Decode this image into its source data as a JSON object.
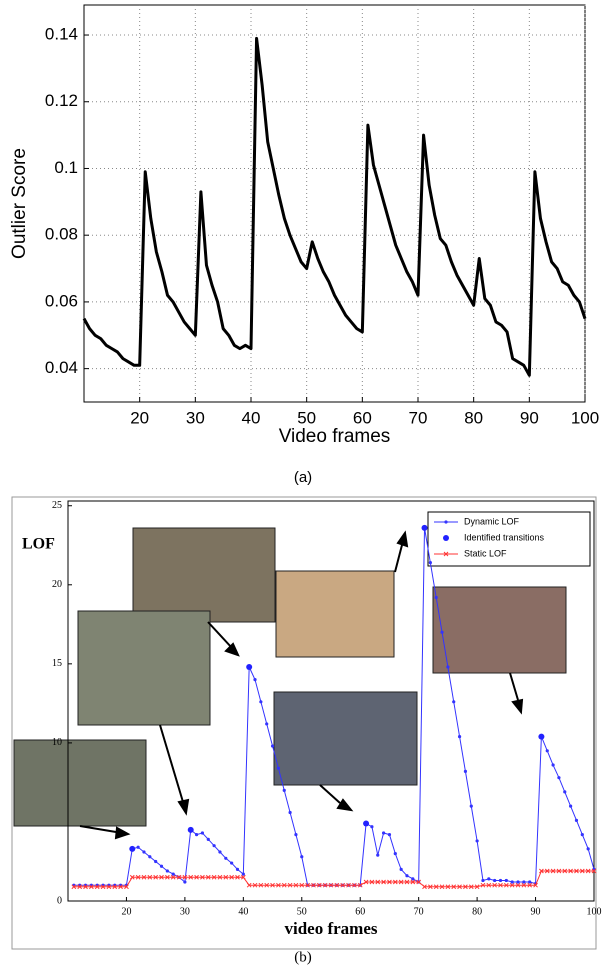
{
  "chart_data": [
    {
      "type": "line",
      "xlabel": "Video frames",
      "ylabel": "Outlier Score",
      "caption": "(a)",
      "color": "#000000",
      "grid": true,
      "x": [
        10,
        11,
        12,
        13,
        14,
        15,
        16,
        17,
        18,
        19,
        20,
        21,
        22,
        23,
        24,
        25,
        26,
        27,
        28,
        29,
        30,
        31,
        32,
        33,
        34,
        35,
        36,
        37,
        38,
        39,
        40,
        41,
        42,
        43,
        44,
        45,
        46,
        47,
        48,
        49,
        50,
        51,
        52,
        53,
        54,
        55,
        56,
        57,
        58,
        59,
        60,
        61,
        62,
        63,
        64,
        65,
        66,
        67,
        68,
        69,
        70,
        71,
        72,
        73,
        74,
        75,
        76,
        77,
        78,
        79,
        80,
        81,
        82,
        83,
        84,
        85,
        86,
        87,
        88,
        89,
        90,
        91,
        92,
        93,
        94,
        95,
        96,
        97,
        98,
        99,
        100
      ],
      "values": [
        0.055,
        0.052,
        0.05,
        0.049,
        0.047,
        0.046,
        0.045,
        0.043,
        0.042,
        0.041,
        0.041,
        0.099,
        0.085,
        0.075,
        0.069,
        0.062,
        0.06,
        0.057,
        0.054,
        0.052,
        0.05,
        0.093,
        0.071,
        0.065,
        0.06,
        0.052,
        0.05,
        0.047,
        0.046,
        0.047,
        0.046,
        0.139,
        0.125,
        0.108,
        0.1,
        0.092,
        0.085,
        0.08,
        0.076,
        0.072,
        0.07,
        0.078,
        0.073,
        0.069,
        0.066,
        0.062,
        0.059,
        0.056,
        0.054,
        0.052,
        0.051,
        0.113,
        0.101,
        0.095,
        0.089,
        0.083,
        0.077,
        0.073,
        0.069,
        0.066,
        0.062,
        0.11,
        0.095,
        0.086,
        0.079,
        0.077,
        0.072,
        0.068,
        0.065,
        0.062,
        0.059,
        0.073,
        0.061,
        0.059,
        0.054,
        0.053,
        0.051,
        0.043,
        0.042,
        0.041,
        0.038,
        0.099,
        0.085,
        0.078,
        0.072,
        0.07,
        0.066,
        0.065,
        0.062,
        0.06,
        0.055
      ],
      "xlim": [
        10,
        100
      ],
      "ylim": [
        0.03,
        0.149
      ],
      "xticks": [
        20,
        30,
        40,
        50,
        60,
        70,
        80,
        90,
        100
      ],
      "yticks": [
        0.04,
        0.06,
        0.08,
        0.1,
        0.12,
        0.14
      ]
    },
    {
      "type": "line",
      "xlabel": "video frames",
      "ylabel": "LOF",
      "caption": "(b)",
      "legend": "upper right",
      "x": [
        11,
        12,
        13,
        14,
        15,
        16,
        17,
        18,
        19,
        20,
        21,
        22,
        23,
        24,
        25,
        26,
        27,
        28,
        29,
        30,
        31,
        32,
        33,
        34,
        35,
        36,
        37,
        38,
        39,
        40,
        41,
        42,
        43,
        44,
        45,
        46,
        47,
        48,
        49,
        50,
        51,
        52,
        53,
        54,
        55,
        56,
        57,
        58,
        59,
        60,
        61,
        62,
        63,
        64,
        65,
        66,
        67,
        68,
        69,
        70,
        71,
        72,
        73,
        74,
        75,
        76,
        77,
        78,
        79,
        80,
        81,
        82,
        83,
        84,
        85,
        86,
        87,
        88,
        89,
        90,
        91,
        92,
        93,
        94,
        95,
        96,
        97,
        98,
        99,
        100
      ],
      "series": [
        {
          "name": "Dynamic LOF",
          "color": "#3333ff",
          "marker": "dot",
          "line": true,
          "values": [
            1,
            1,
            1,
            1,
            1,
            1,
            1,
            1,
            1,
            1,
            3.3,
            3.4,
            3.1,
            2.8,
            2.5,
            2.2,
            1.9,
            1.7,
            1.5,
            1.2,
            4.5,
            4.2,
            4.3,
            3.9,
            3.5,
            3.1,
            2.7,
            2.4,
            2,
            1.7,
            14.8,
            14,
            12.6,
            11.2,
            9.8,
            8.4,
            7,
            5.6,
            4.2,
            2.8,
            1,
            1,
            1,
            1,
            1,
            1,
            1,
            1,
            1,
            1,
            4.9,
            4.7,
            2.9,
            4.3,
            4.2,
            3,
            2,
            1.6,
            1.4,
            1.2,
            23.6,
            21.4,
            19.2,
            17,
            14.8,
            12.6,
            10.4,
            8.2,
            6,
            3.8,
            1.3,
            1.4,
            1.3,
            1.3,
            1.3,
            1.2,
            1.2,
            1.2,
            1.2,
            1.1,
            10.4,
            9.5,
            8.6,
            7.8,
            6.9,
            6,
            5.1,
            4.2,
            3.3,
            2
          ]
        },
        {
          "name": "Identified transitions",
          "color": "#2222ff",
          "marker": "bigdot",
          "line": false,
          "x": [
            21,
            31,
            41,
            61,
            71,
            91
          ],
          "values": [
            3.3,
            4.5,
            14.8,
            4.9,
            23.6,
            10.4
          ]
        },
        {
          "name": "Static LOF",
          "color": "#ff3333",
          "marker": "x",
          "line": true,
          "values": [
            0.9,
            0.9,
            0.9,
            0.9,
            0.9,
            0.9,
            0.9,
            0.9,
            0.9,
            0.9,
            1.5,
            1.5,
            1.5,
            1.5,
            1.5,
            1.5,
            1.5,
            1.5,
            1.5,
            1.5,
            1.5,
            1.5,
            1.5,
            1.5,
            1.5,
            1.5,
            1.5,
            1.5,
            1.5,
            1.5,
            1,
            1,
            1,
            1,
            1,
            1,
            1,
            1,
            1,
            1,
            1,
            1,
            1,
            1,
            1,
            1,
            1,
            1,
            1,
            1,
            1.2,
            1.2,
            1.2,
            1.2,
            1.2,
            1.2,
            1.2,
            1.2,
            1.2,
            1.2,
            0.9,
            0.9,
            0.9,
            0.9,
            0.9,
            0.9,
            0.9,
            0.9,
            0.9,
            0.9,
            1,
            1,
            1,
            1,
            1,
            1,
            1,
            1,
            1,
            1,
            1.9,
            1.9,
            1.9,
            1.9,
            1.9,
            1.9,
            1.9,
            1.9,
            1.9,
            1.9
          ]
        }
      ],
      "xlim": [
        10,
        100
      ],
      "ylim": [
        0,
        25.3
      ],
      "xticks": [
        20,
        30,
        40,
        50,
        60,
        70,
        80,
        90,
        100
      ],
      "yticks": [
        0,
        10,
        15,
        20,
        25
      ]
    }
  ]
}
